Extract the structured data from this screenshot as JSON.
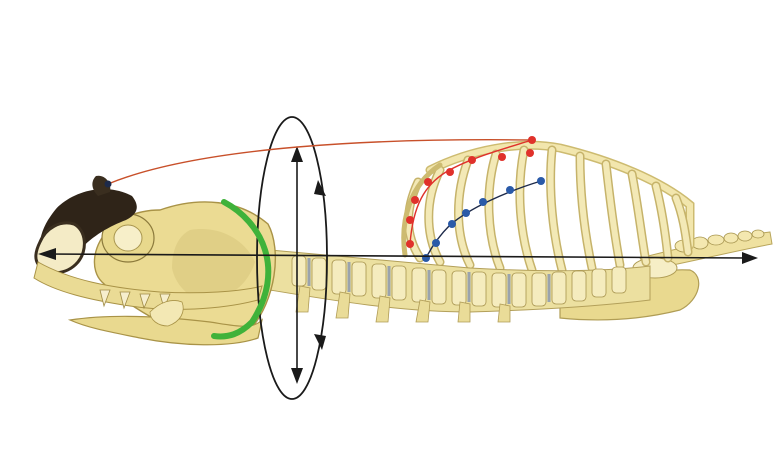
{
  "figure": {
    "description_labels": [],
    "colors": {
      "background": "#ffffff",
      "bone": "#f0e3a2",
      "bone_shadow": "#c9b56a",
      "bone_dark": "#3a2e1f",
      "axis_line": "#1a1a1a",
      "red_markers": "#e0312b",
      "blue_markers": "#2a5aa8",
      "green_arc": "#3fb23a",
      "arc_line": "#c8502a",
      "rotation_loop": "#1a1a1a"
    },
    "icons": {
      "rotation_loop": "rotation-loop-icon",
      "double_arrow": "vertical-double-arrow-icon",
      "axis_arrow": "horizontal-axis-arrow-icon"
    }
  }
}
